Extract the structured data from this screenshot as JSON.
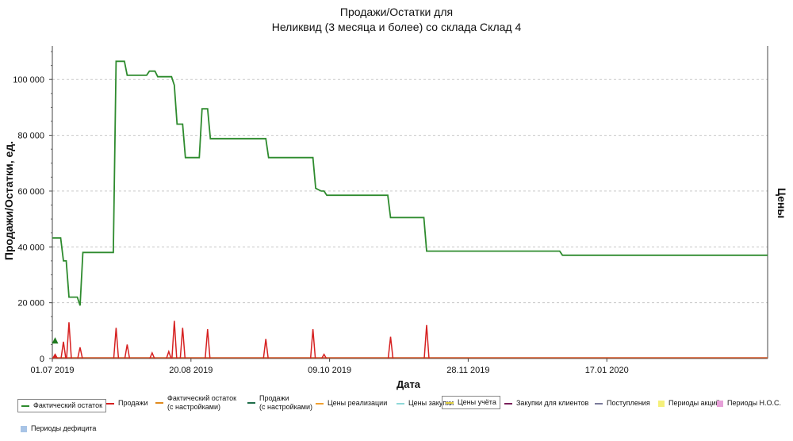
{
  "title_line1": "Продажи/Остатки для",
  "title_line2": "Неликвид (3 месяца и более) со склада Склад 4",
  "chart_data": {
    "type": "line",
    "title": "Продажи/Остатки для Неликвид (3 месяца и более) со склада Склад 4",
    "xlabel": "Дата",
    "ylabel": "Продажи/Остатки, ед.",
    "y2label": "Цены",
    "x_range": [
      "2019-07-01",
      "2020-03-15"
    ],
    "ylim": [
      0,
      112000
    ],
    "y_ticks": [
      0,
      20000,
      40000,
      60000,
      80000,
      100000
    ],
    "y_tick_labels": [
      "0",
      "20 000",
      "40 000",
      "60 000",
      "80 000",
      "100 000"
    ],
    "x_ticks": [
      "2019-07-01",
      "2019-08-20",
      "2019-10-09",
      "2019-11-28",
      "2020-01-17"
    ],
    "x_tick_labels": [
      "01.07 2019",
      "20.08 2019",
      "09.10 2019",
      "28.11 2019",
      "17.01 2020"
    ],
    "grid": true,
    "legend_position": "bottom",
    "series": [
      {
        "name": "Фактический остаток",
        "color": "#2e8b2e",
        "points": [
          [
            "2019-07-01",
            43200
          ],
          [
            "2019-07-04",
            43200
          ],
          [
            "2019-07-05",
            35000
          ],
          [
            "2019-07-06",
            35000
          ],
          [
            "2019-07-07",
            22000
          ],
          [
            "2019-07-10",
            22000
          ],
          [
            "2019-07-11",
            19000
          ],
          [
            "2019-07-12",
            38000
          ],
          [
            "2019-07-23",
            38000
          ],
          [
            "2019-07-24",
            106500
          ],
          [
            "2019-07-27",
            106500
          ],
          [
            "2019-07-28",
            101500
          ],
          [
            "2019-08-04",
            101500
          ],
          [
            "2019-08-05",
            103000
          ],
          [
            "2019-08-07",
            103000
          ],
          [
            "2019-08-08",
            101000
          ],
          [
            "2019-08-13",
            101000
          ],
          [
            "2019-08-14",
            98000
          ],
          [
            "2019-08-15",
            84000
          ],
          [
            "2019-08-17",
            84000
          ],
          [
            "2019-08-18",
            72000
          ],
          [
            "2019-08-23",
            72000
          ],
          [
            "2019-08-24",
            89500
          ],
          [
            "2019-08-26",
            89500
          ],
          [
            "2019-08-27",
            78800
          ],
          [
            "2019-09-16",
            78800
          ],
          [
            "2019-09-17",
            72000
          ],
          [
            "2019-10-03",
            72000
          ],
          [
            "2019-10-04",
            61000
          ],
          [
            "2019-10-06",
            60000
          ],
          [
            "2019-10-07",
            60000
          ],
          [
            "2019-10-08",
            58500
          ],
          [
            "2019-10-30",
            58500
          ],
          [
            "2019-10-31",
            50500
          ],
          [
            "2019-11-12",
            50500
          ],
          [
            "2019-11-13",
            38500
          ],
          [
            "2019-12-31",
            38500
          ],
          [
            "2020-01-01",
            37000
          ],
          [
            "2020-03-15",
            37000
          ]
        ]
      },
      {
        "name": "Продажи",
        "color": "#d62020",
        "spikes": [
          [
            "2019-07-02",
            1500
          ],
          [
            "2019-07-05",
            6000
          ],
          [
            "2019-07-07",
            13000
          ],
          [
            "2019-07-11",
            4000
          ],
          [
            "2019-07-24",
            11000
          ],
          [
            "2019-07-28",
            5000
          ],
          [
            "2019-08-06",
            2000
          ],
          [
            "2019-08-12",
            2500
          ],
          [
            "2019-08-14",
            13500
          ],
          [
            "2019-08-17",
            11000
          ],
          [
            "2019-08-26",
            10500
          ],
          [
            "2019-09-16",
            7000
          ],
          [
            "2019-10-03",
            10500
          ],
          [
            "2019-10-07",
            1500
          ],
          [
            "2019-10-31",
            7800
          ],
          [
            "2019-11-13",
            12000
          ]
        ]
      },
      {
        "name": "Цены учёта",
        "color": "#e0d040",
        "constant": 0
      }
    ],
    "marker": {
      "x": "2019-07-02",
      "y": 6500,
      "color": "#1f7a1f"
    }
  },
  "legend": [
    {
      "label": "Фактический остаток",
      "color": "#2e8b2e",
      "kind": "line",
      "boxed": true
    },
    {
      "label": "Продажи",
      "color": "#d62020",
      "kind": "line"
    },
    {
      "label": "Фактический остаток\n(с настройками)",
      "color": "#e08a1e",
      "kind": "line"
    },
    {
      "label": "Продажи\n(с настройками)",
      "color": "#1f6e4a",
      "kind": "line"
    },
    {
      "label": "Цены реализации",
      "color": "#f0a030",
      "kind": "line"
    },
    {
      "label": "Цены закупки",
      "color": "#8fd8d8",
      "kind": "line"
    },
    {
      "label": "Цены учёта",
      "color": "#e0d040",
      "kind": "line",
      "boxed": true
    },
    {
      "label": "Закупки для клиентов",
      "color": "#7a1f5a",
      "kind": "line"
    },
    {
      "label": "Поступления",
      "color": "#7a7a9a",
      "kind": "line"
    },
    {
      "label": "Периоды акций",
      "color": "#f5f07a",
      "kind": "box"
    },
    {
      "label": "Периоды Н.О.С.",
      "color": "#e6a0d8",
      "kind": "box"
    },
    {
      "label": "Периоды дефицита",
      "color": "#a8c4e6",
      "kind": "box"
    }
  ]
}
